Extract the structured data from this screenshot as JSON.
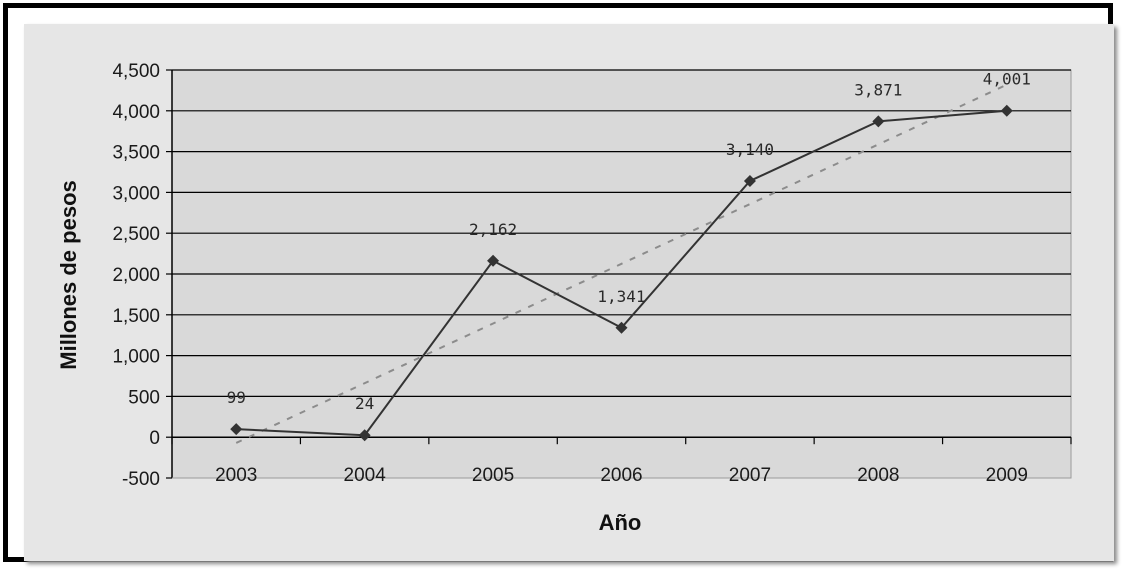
{
  "chart_data": {
    "type": "line",
    "title": "",
    "xlabel": "Año",
    "ylabel": "Millones de pesos",
    "categories": [
      "2003",
      "2004",
      "2005",
      "2006",
      "2007",
      "2008",
      "2009"
    ],
    "series": [
      {
        "values": [
          99,
          24,
          2162,
          1341,
          3140,
          3871,
          4001
        ],
        "marker": "diamond",
        "color": "#333333"
      }
    ],
    "data_labels": [
      "99",
      "24",
      "2,162",
      "1,341",
      "3,140",
      "3,871",
      "4,001"
    ],
    "trendline": {
      "style": "dashed",
      "color": "#8c8c8c",
      "start": -70,
      "end": 4320
    },
    "ylim": [
      -500,
      4500
    ],
    "yticks": [
      -500,
      0,
      500,
      1000,
      1500,
      2000,
      2500,
      3000,
      3500,
      4000,
      4500
    ],
    "ytick_labels": [
      "-500",
      "0",
      "500",
      "1,000",
      "1,500",
      "2,000",
      "2,500",
      "3,000",
      "3,500",
      "4,000",
      "4,500"
    ],
    "grid": true,
    "legend": "none",
    "colors": {
      "plot_bg": "#d9d9d9",
      "chart_bg": "#e6e6e6",
      "line": "#333333",
      "grid": "#000000"
    }
  }
}
